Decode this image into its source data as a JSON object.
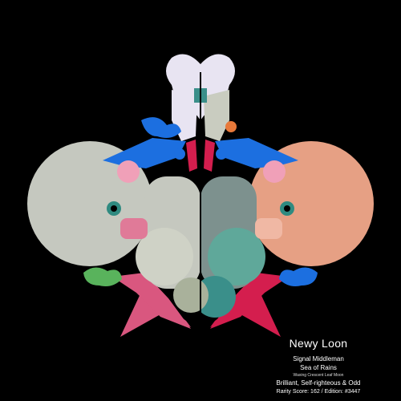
{
  "artwork": {
    "palette": {
      "background": "#000000",
      "gray": "#c5c8bf",
      "salmon": "#e6a084",
      "blue": "#1c6fe0",
      "pink": "#d9577f",
      "crimson": "#d41e4e",
      "lavender": "#e8e4f2",
      "green": "#59b35c",
      "teal": "#3a8f8a",
      "sage": "#a9b19b"
    }
  },
  "caption": {
    "name": "Newy Loon",
    "role": "Signal Middleman",
    "location": "Sea of Rains",
    "moon_phase": "Waxing Crescent Leaf Moon",
    "traits": "Brilliant, Self-righteous & Odd",
    "rarity": "Rarity Score: 162 / Edition: #3447"
  }
}
